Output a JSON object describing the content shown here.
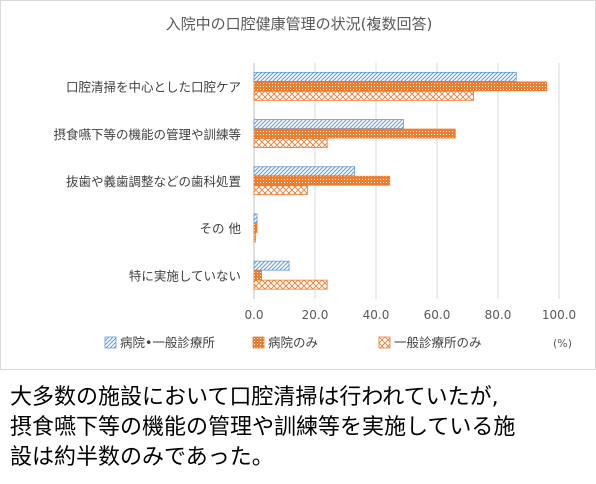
{
  "chart_data": {
    "type": "bar",
    "orientation": "horizontal",
    "title": "入院中の口腔健康管理の状況(複数回答)",
    "categories": [
      "口腔清掃を中心とした口腔ケア",
      "摂食嚥下等の機能の管理や訓練等",
      "抜歯や義歯調整などの歯科処置",
      "その 他",
      "特に実施していない"
    ],
    "series": [
      {
        "name": "病院•一般診療所",
        "values": [
          86.0,
          49.0,
          33.0,
          1.0,
          11.5
        ],
        "color": "#5b9bd5",
        "pattern": "diagonal-lines"
      },
      {
        "name": "病院のみ",
        "values": [
          96.0,
          66.0,
          44.5,
          1.0,
          2.5
        ],
        "color": "#ed7d31",
        "pattern": "dots"
      },
      {
        "name": "一般診療所のみ",
        "values": [
          72.0,
          24.0,
          17.5,
          0.5,
          24.0
        ],
        "color": "#ed7d31",
        "pattern": "crosshatch"
      }
    ],
    "x_ticks": [
      "0.0",
      "20.0",
      "40.0",
      "60.0",
      "80.0",
      "100.0"
    ],
    "xlim": [
      0,
      100
    ],
    "x_unit": "(%)",
    "grid": "vertical",
    "legend_position": "bottom"
  },
  "caption": {
    "lines": [
      "大多数の施設において口腔清掃は行われていたが,",
      "摂食嚥下等の機能の管理や訓練等を実施している施",
      "設は約半数のみであった。"
    ]
  }
}
